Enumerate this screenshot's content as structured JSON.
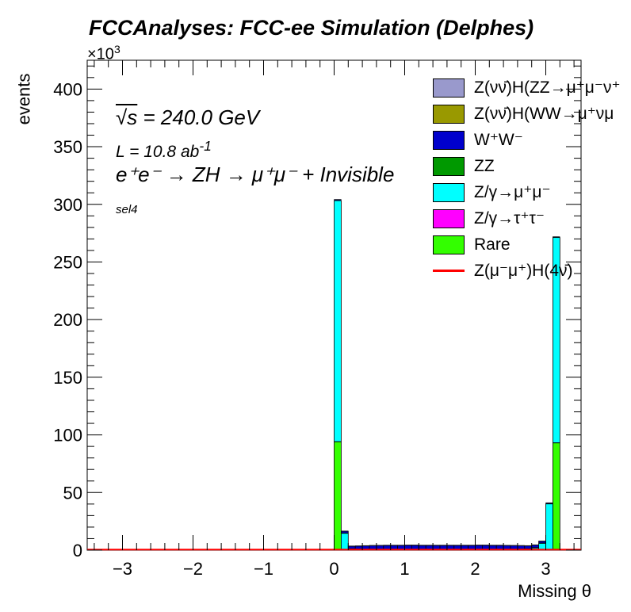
{
  "header": {
    "title": "FCCAnalyses: FCC-ee Simulation (Delphes)",
    "exponent_base": "×10",
    "exponent_power": "3"
  },
  "annotations": {
    "energy_symbol": "√s",
    "energy_value": " = 240.0 GeV",
    "lumi_text": "L = 10.8 ab",
    "lumi_power": "-1",
    "process": "e⁺e⁻ → ZH → μ⁺μ⁻ + Invisible",
    "selection": "sel4"
  },
  "legend": {
    "items": [
      {
        "label": "Z(νν̄)H(ZZ→μ⁺μ⁻ν⁺",
        "color": "#9999cc",
        "kind": "fill"
      },
      {
        "label": "Z(νν̄)H(WW→μ⁺νμ",
        "color": "#999900",
        "kind": "fill"
      },
      {
        "label": "W⁺W⁻",
        "color": "#0000cc",
        "kind": "fill"
      },
      {
        "label": "ZZ",
        "color": "#009900",
        "kind": "fill"
      },
      {
        "label": "Z/γ→μ⁺μ⁻",
        "color": "#00ffff",
        "kind": "fill"
      },
      {
        "label": "Z/γ→τ⁺τ⁻",
        "color": "#ff00ff",
        "kind": "fill"
      },
      {
        "label": "Rare",
        "color": "#33ff00",
        "kind": "fill"
      },
      {
        "label": "Z(μ⁻μ⁺)H(4ν̄)",
        "color": "#ff0000",
        "kind": "line"
      }
    ]
  },
  "chart_data": {
    "type": "bar",
    "title": "FCCAnalyses: FCC-ee Simulation (Delphes)",
    "xlabel": "Missing θ",
    "ylabel": "events",
    "y_scale_note": "×10^3",
    "xlim": [
      -3.5,
      3.5
    ],
    "ylim": [
      0,
      425
    ],
    "xticks": [
      -3,
      -2,
      -1,
      0,
      1,
      2,
      3
    ],
    "yticks": [
      0,
      50,
      100,
      150,
      200,
      250,
      300,
      350,
      400
    ],
    "bin_edges": [
      0.0,
      0.1,
      0.2,
      0.3,
      0.4,
      0.5,
      0.6,
      0.7,
      0.8,
      0.9,
      1.0,
      1.1,
      1.2,
      1.3,
      1.4,
      1.5,
      1.6,
      1.7,
      1.8,
      1.9,
      2.0,
      2.1,
      2.2,
      2.3,
      2.4,
      2.5,
      2.6,
      2.7,
      2.8,
      2.9,
      3.0,
      3.1,
      3.2
    ],
    "stacked": true,
    "series": [
      {
        "name": "Rare",
        "color": "#33ff00",
        "values": [
          94,
          0.5,
          0.3,
          0.3,
          0.3,
          0.3,
          0.3,
          0.3,
          0.3,
          0.3,
          0.3,
          0.3,
          0.3,
          0.3,
          0.3,
          0.3,
          0.3,
          0.3,
          0.3,
          0.3,
          0.3,
          0.3,
          0.3,
          0.3,
          0.3,
          0.3,
          0.3,
          0.3,
          0.3,
          0.3,
          0.5,
          93
        ]
      },
      {
        "name": "Z/γ→τ⁺τ⁻",
        "color": "#ff00ff",
        "values": [
          0.2,
          0.1,
          0.1,
          0.1,
          0.1,
          0.1,
          0.1,
          0.1,
          0.1,
          0.1,
          0.1,
          0.1,
          0.1,
          0.1,
          0.1,
          0.1,
          0.1,
          0.1,
          0.1,
          0.1,
          0.1,
          0.1,
          0.1,
          0.1,
          0.1,
          0.1,
          0.1,
          0.1,
          0.1,
          0.1,
          0.1,
          0.2
        ]
      },
      {
        "name": "Z/γ→μ⁺μ⁻",
        "color": "#00ffff",
        "values": [
          209,
          14,
          0.5,
          0.3,
          0.2,
          0.2,
          0.1,
          0.1,
          0.1,
          0.1,
          0.1,
          0.1,
          0.1,
          0.1,
          0.1,
          0.1,
          0.1,
          0.1,
          0.1,
          0.1,
          0.1,
          0.1,
          0.1,
          0.1,
          0.1,
          0.2,
          0.3,
          0.5,
          1.5,
          5.5,
          39.5,
          178
        ]
      },
      {
        "name": "ZZ",
        "color": "#009900",
        "values": [
          0.3,
          0.3,
          0.3,
          0.3,
          0.3,
          0.3,
          0.3,
          0.3,
          0.3,
          0.3,
          0.3,
          0.3,
          0.3,
          0.3,
          0.3,
          0.3,
          0.3,
          0.3,
          0.3,
          0.3,
          0.3,
          0.3,
          0.3,
          0.3,
          0.3,
          0.3,
          0.3,
          0.3,
          0.3,
          0.3,
          0.3,
          0.3
        ]
      },
      {
        "name": "W⁺W⁻",
        "color": "#0000cc",
        "values": [
          0.5,
          1.5,
          2.2,
          2.5,
          2.8,
          3.0,
          3.2,
          3.3,
          3.3,
          3.3,
          3.4,
          3.4,
          3.3,
          3.3,
          3.3,
          3.3,
          3.3,
          3.3,
          3.3,
          3.3,
          3.4,
          3.4,
          3.3,
          3.3,
          3.2,
          3.0,
          2.8,
          2.5,
          2.2,
          1.5,
          0.5,
          0.2
        ]
      },
      {
        "name": "Z(νν̄)H(WW→μ⁺νμ",
        "color": "#999900",
        "values": [
          0.05,
          0.1,
          0.1,
          0.1,
          0.1,
          0.1,
          0.1,
          0.1,
          0.1,
          0.1,
          0.1,
          0.1,
          0.1,
          0.1,
          0.1,
          0.1,
          0.1,
          0.1,
          0.1,
          0.1,
          0.1,
          0.1,
          0.1,
          0.1,
          0.1,
          0.1,
          0.1,
          0.1,
          0.1,
          0.1,
          0.05,
          0.05
        ]
      },
      {
        "name": "Z(νν̄)H(ZZ→μ⁺μ⁻ν⁺",
        "color": "#9999cc",
        "values": [
          0.02,
          0.05,
          0.05,
          0.05,
          0.05,
          0.05,
          0.05,
          0.05,
          0.05,
          0.05,
          0.05,
          0.05,
          0.05,
          0.05,
          0.05,
          0.05,
          0.05,
          0.05,
          0.05,
          0.05,
          0.05,
          0.05,
          0.05,
          0.05,
          0.05,
          0.05,
          0.05,
          0.05,
          0.05,
          0.05,
          0.02,
          0.02
        ]
      }
    ],
    "signal_line": {
      "name": "Z(μ⁻μ⁺)H(4ν̄)",
      "color": "#ff0000",
      "value": 0.5
    }
  }
}
